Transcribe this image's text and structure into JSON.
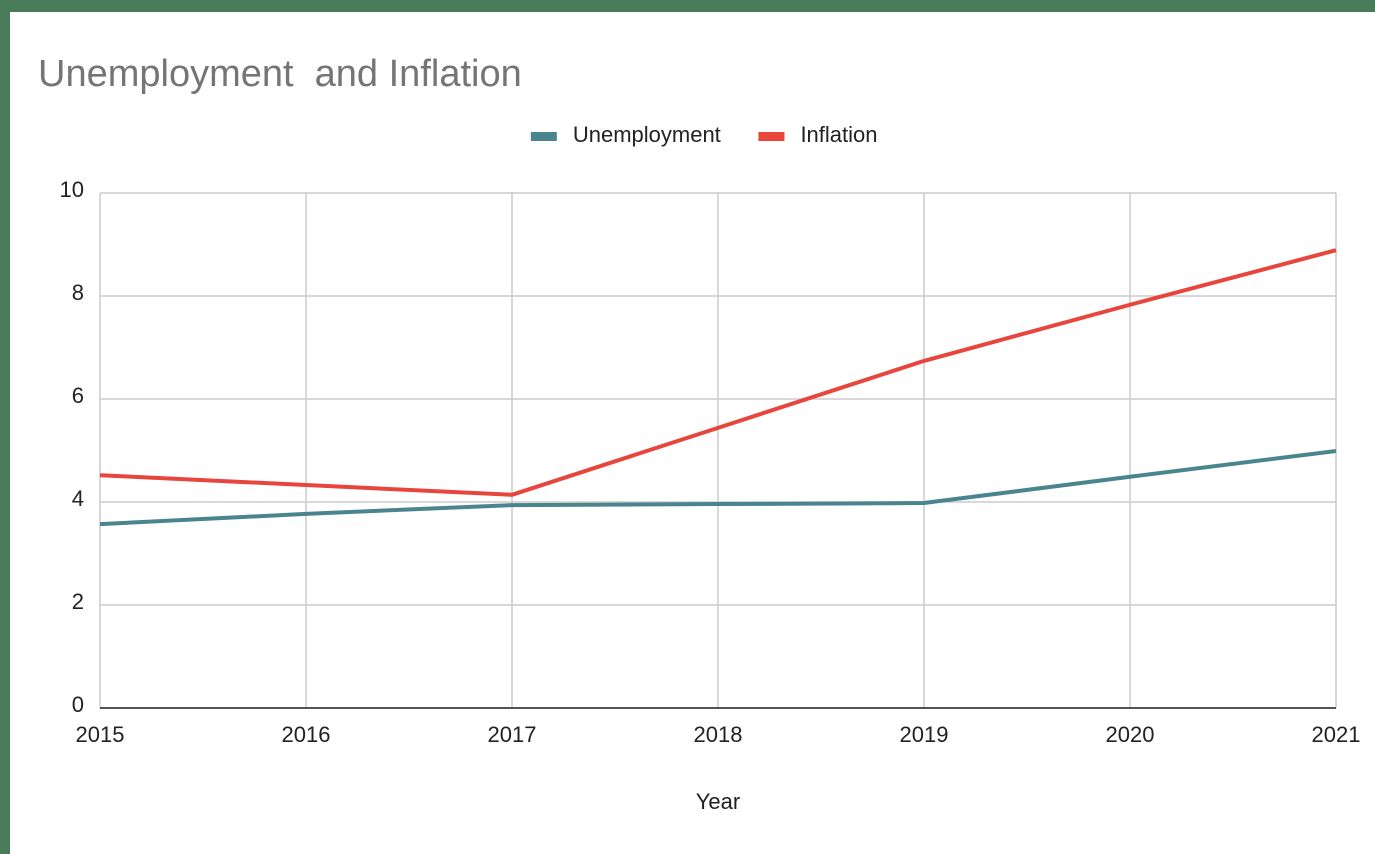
{
  "chart_data": {
    "type": "line",
    "title": "Unemployment  and Inflation",
    "x_label": "Year",
    "x": [
      2015,
      2016,
      2017,
      2018,
      2019,
      2020,
      2021
    ],
    "xlim": [
      2015,
      2021
    ],
    "xticks": [
      2015,
      2016,
      2017,
      2018,
      2019,
      2020,
      2021
    ],
    "ylim": [
      0,
      10
    ],
    "yticks": [
      0,
      2,
      4,
      6,
      8,
      10
    ],
    "grid": true,
    "legend": "top",
    "series": [
      {
        "name": "Unemployment",
        "color": "#4a858f",
        "values": [
          3.57,
          3.77,
          3.94,
          3.96,
          3.98,
          4.49,
          4.99
        ]
      },
      {
        "name": "Inflation",
        "color": "#e8453c",
        "values": [
          4.52,
          4.33,
          4.14,
          5.44,
          6.74,
          7.83,
          8.89
        ]
      }
    ]
  }
}
